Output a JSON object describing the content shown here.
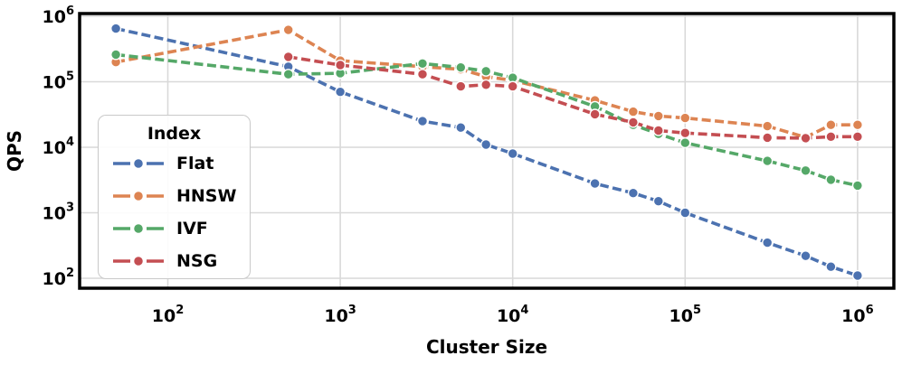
{
  "chart_data": {
    "type": "line",
    "title": "",
    "xlabel": "Cluster Size",
    "ylabel": "QPS",
    "x_scale": "log",
    "y_scale": "log",
    "grid": true,
    "legend": {
      "title": "Index",
      "position": "center-left"
    },
    "x_tick_exponents": [
      2,
      3,
      4,
      5,
      6
    ],
    "y_tick_exponents": [
      2,
      3,
      4,
      5,
      6
    ],
    "xlim_log": [
      1.49,
      6.21
    ],
    "ylim_log": [
      1.85,
      6.04
    ],
    "x": [
      50,
      500,
      1000,
      3000,
      5000,
      7000,
      10000,
      30000,
      50000,
      70000,
      100000,
      300000,
      500000,
      700000,
      1000000
    ],
    "series": [
      {
        "name": "Flat",
        "color": "#4C72B0",
        "values": [
          650000,
          170000,
          70000,
          25000,
          20000,
          11000,
          8000,
          2800,
          2000,
          1500,
          1000,
          350,
          220,
          150,
          110
        ]
      },
      {
        "name": "HNSW",
        "color": "#DD8452",
        "values": [
          200000,
          620000,
          210000,
          170000,
          155000,
          120000,
          105000,
          52000,
          35000,
          30000,
          28000,
          21000,
          14200,
          22000,
          22000
        ]
      },
      {
        "name": "IVF",
        "color": "#55A868",
        "values": [
          260000,
          130000,
          135000,
          190000,
          165000,
          145000,
          115000,
          42000,
          22000,
          16000,
          11700,
          6200,
          4400,
          3200,
          2600
        ]
      },
      {
        "name": "NSG",
        "color": "#C44E52",
        "values": [
          null,
          240000,
          180000,
          130000,
          85000,
          90000,
          85000,
          32000,
          24000,
          18000,
          16500,
          14000,
          13800,
          14500,
          14500
        ]
      }
    ]
  },
  "colors": {
    "grid": "#d9d9d9",
    "spine": "#000000",
    "background": "#ffffff",
    "legend_border": "#c9c9c9"
  }
}
